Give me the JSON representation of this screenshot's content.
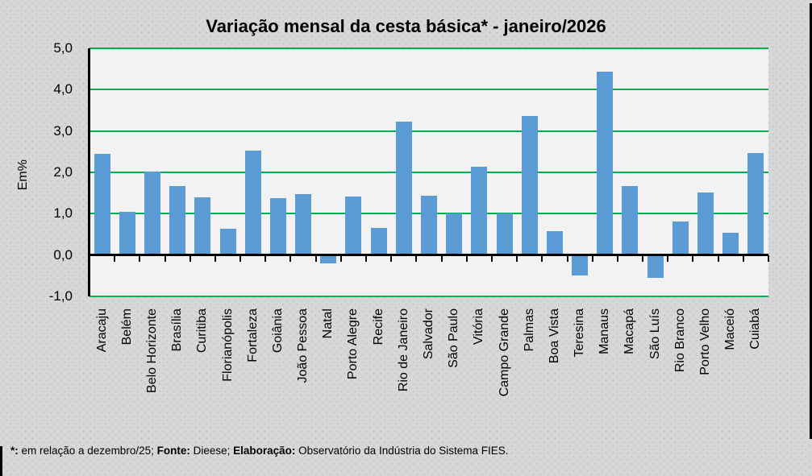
{
  "title": "Variação mensal da cesta básica* - janeiro/2026",
  "y_axis": {
    "label": "Em%",
    "ticks": [
      {
        "label": "5,0",
        "value": 5
      },
      {
        "label": "4,0",
        "value": 4
      },
      {
        "label": "3,0",
        "value": 3
      },
      {
        "label": "2,0",
        "value": 2
      },
      {
        "label": "1,0",
        "value": 1
      },
      {
        "label": "0,0",
        "value": 0
      },
      {
        "label": "-1,0",
        "value": -1
      }
    ]
  },
  "footnote": {
    "parts": [
      {
        "text": "*:",
        "bold": true
      },
      {
        "text": " em relação a dezembro/25; ",
        "bold": false
      },
      {
        "text": "Fonte:",
        "bold": true
      },
      {
        "text": " Dieese; ",
        "bold": false
      },
      {
        "text": "Elaboração:",
        "bold": true
      },
      {
        "text": " Observatório da Indústria do Sistema FIES.",
        "bold": false
      }
    ]
  },
  "chart_data": {
    "type": "bar",
    "title": "Variação mensal da cesta básica* - janeiro/2026",
    "xlabel": "",
    "ylabel": "Em%",
    "ylim": [
      -1.0,
      5.0
    ],
    "grid": true,
    "gridline_values": [
      5,
      4,
      3,
      2,
      1,
      -1
    ],
    "legend": "none",
    "bar_color": "#5B9BD5",
    "gridline_color": "#00B050",
    "categories": [
      "Aracaju",
      "Belém",
      "Belo Horizonte",
      "Brasília",
      "Curitiba",
      "Florianópolis",
      "Fortaleza",
      "Goiânia",
      "João Pessoa",
      "Natal",
      "Porto Alegre",
      "Recife",
      "Rio de Janeiro",
      "Salvador",
      "São Paulo",
      "Vitória",
      "Campo Grande",
      "Palmas",
      "Boa Vista",
      "Teresina",
      "Manaus",
      "Macapá",
      "São Luís",
      "Rio Branco",
      "Porto Velho",
      "Maceió",
      "Cuiabá"
    ],
    "values": [
      2.44,
      1.05,
      2.02,
      1.66,
      1.39,
      0.63,
      2.52,
      1.38,
      1.47,
      -0.21,
      1.42,
      0.66,
      3.22,
      1.43,
      1.0,
      2.13,
      1.0,
      3.37,
      0.57,
      -0.5,
      4.43,
      1.66,
      -0.55,
      0.82,
      1.52,
      0.53,
      2.47
    ]
  }
}
